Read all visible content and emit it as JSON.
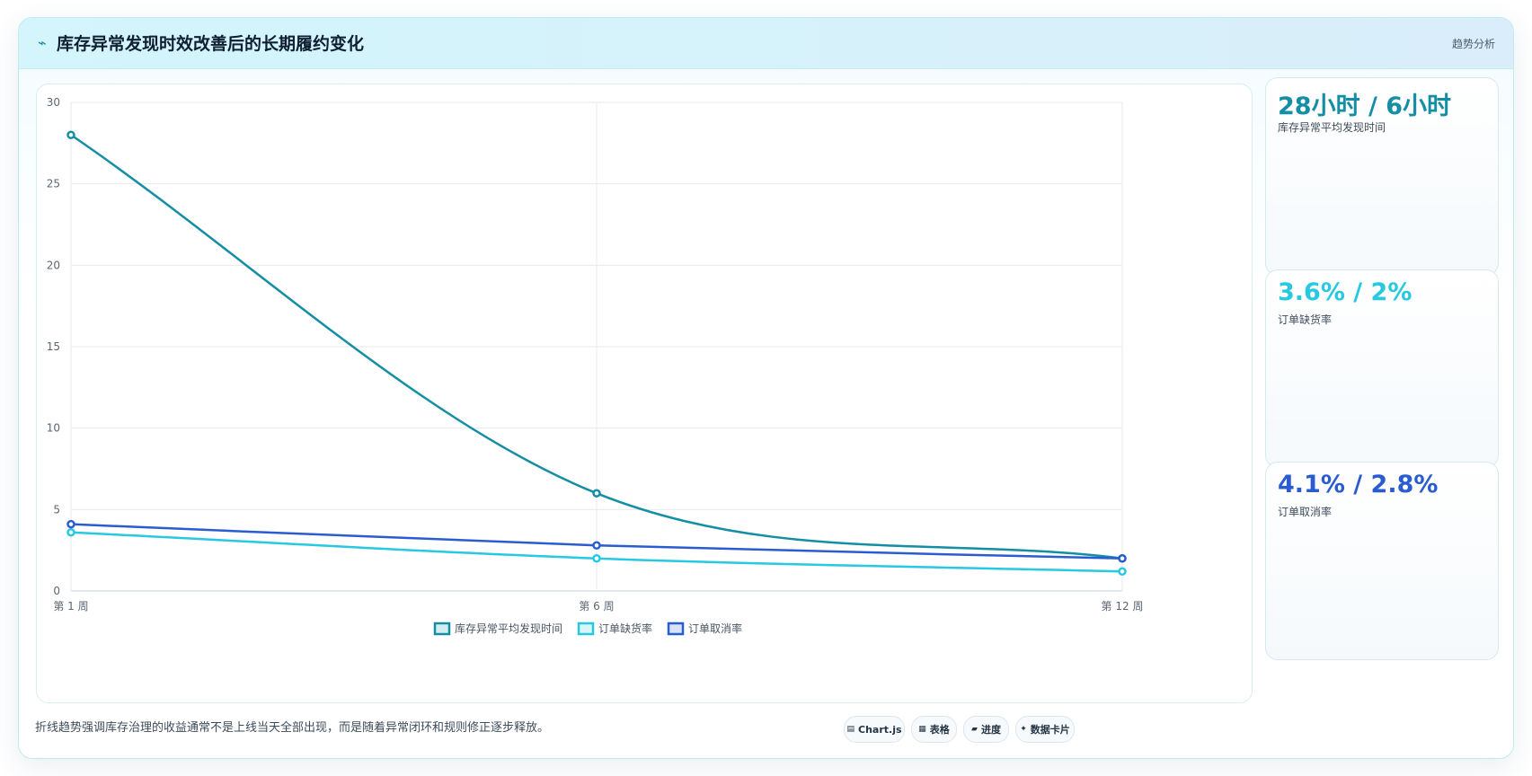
{
  "header": {
    "icon": "trend-icon",
    "title": "库存异常发现时效改善后的长期履约变化",
    "tag": "趋势分析"
  },
  "stats": [
    {
      "value": "28小时 / 6小时",
      "label": "库存异常平均发现时间",
      "color": "#138ea4"
    },
    {
      "value": "3.6% / 2%",
      "label": "订单缺货率",
      "color": "#26c9e0"
    },
    {
      "value": "4.1% / 2.8%",
      "label": "订单取消率",
      "color": "#2a5cd1"
    }
  ],
  "footer": {
    "note": "折线趋势强调库存治理的收益通常不是上线当天全部出现，而是随着异常闭环和规则修正逐步释放。",
    "chips": [
      {
        "icon": "chart-icon",
        "glyph": "▤",
        "label": "Chart.js"
      },
      {
        "icon": "table-icon",
        "glyph": "▦",
        "label": "表格"
      },
      {
        "icon": "progress-icon",
        "glyph": "▰",
        "label": "进度"
      },
      {
        "icon": "sparkle-icon",
        "glyph": "✦",
        "label": "数据卡片"
      }
    ]
  },
  "chart_data": {
    "type": "line",
    "x": [
      "第 1 周",
      "第 6 周",
      "第 12 周"
    ],
    "ylim": [
      0,
      30
    ],
    "yticks": [
      0,
      5,
      10,
      15,
      20,
      25,
      30
    ],
    "grid": true,
    "legend_position": "bottom",
    "series": [
      {
        "name": "库存异常平均发现时间",
        "values": [
          28,
          6,
          2
        ],
        "color": "#138ea4"
      },
      {
        "name": "订单缺货率",
        "values": [
          3.6,
          2,
          1.2
        ],
        "color": "#26c9e0"
      },
      {
        "name": "订单取消率",
        "values": [
          4.1,
          2.8,
          2
        ],
        "color": "#2a5cd1"
      }
    ]
  }
}
